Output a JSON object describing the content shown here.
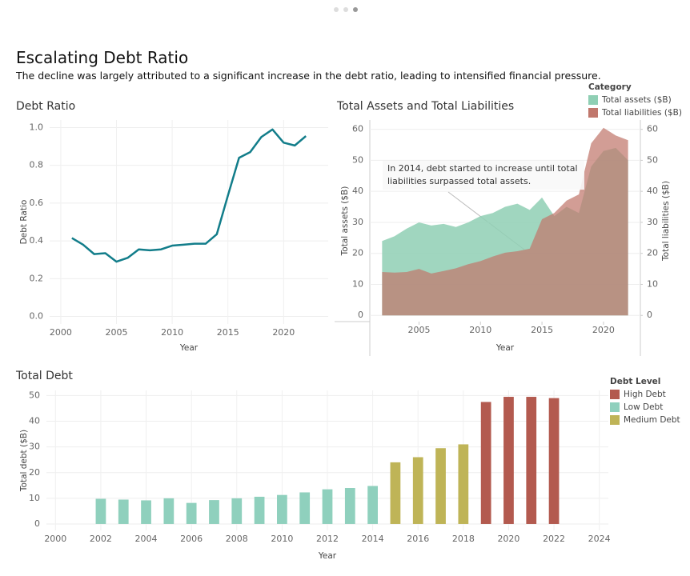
{
  "header": {
    "title": "Escalating Debt Ratio",
    "subtitle": "The decline was largely attributed to a significant increase in the debt ratio, leading to intensified financial pressure."
  },
  "chart_data": [
    {
      "type": "line",
      "title": "Debt Ratio",
      "x_label": "Year",
      "y_label": "Debt Ratio",
      "x": [
        2001,
        2002,
        2003,
        2004,
        2005,
        2006,
        2007,
        2008,
        2009,
        2010,
        2011,
        2012,
        2013,
        2014,
        2015,
        2016,
        2017,
        2018,
        2019,
        2020,
        2021,
        2022
      ],
      "values": [
        0.415,
        0.38,
        0.33,
        0.335,
        0.29,
        0.31,
        0.355,
        0.35,
        0.355,
        0.375,
        0.38,
        0.385,
        0.385,
        0.435,
        0.64,
        0.84,
        0.87,
        0.95,
        0.99,
        0.92,
        0.905,
        0.955
      ],
      "color": "#127d8a",
      "xlim": [
        1999,
        2024
      ],
      "xticks": [
        2000,
        2005,
        2010,
        2015,
        2020
      ],
      "ylim": [
        -0.04,
        1.04
      ],
      "yticks": [
        {
          "value": 0,
          "label": "0.0"
        },
        0.2,
        0.4,
        0.6,
        0.8,
        {
          "value": 1,
          "label": "1.0"
        }
      ],
      "grid": true,
      "xgrid": true
    },
    {
      "type": "area",
      "title": "Total Assets and Total Liabilities",
      "x_label": "Year",
      "y_label": "Total assets ($B)",
      "y2_label": "Total liabilities ($B)",
      "legend_title": "Category",
      "x": [
        2002,
        2003,
        2004,
        2005,
        2006,
        2007,
        2008,
        2009,
        2010,
        2011,
        2012,
        2013,
        2014,
        2015,
        2016,
        2017,
        2018,
        2019,
        2020,
        2021,
        2022
      ],
      "series": [
        {
          "name": "Total assets ($B)",
          "color": "#8fcfb4",
          "values": [
            24,
            25.5,
            28,
            30,
            29,
            29.5,
            28.5,
            30,
            32,
            33,
            35,
            36,
            34,
            38,
            32,
            35,
            33,
            48,
            53,
            54,
            50
          ]
        },
        {
          "name": "Total liabilities ($B)",
          "color": "#c0776c",
          "axis": "y2",
          "values": [
            14,
            13.8,
            14,
            15,
            13.5,
            14.3,
            15.2,
            16.5,
            17.5,
            19,
            20.2,
            20.7,
            21.5,
            31,
            33,
            37,
            39,
            55.5,
            60.5,
            58,
            56.5
          ]
        }
      ],
      "xlim": [
        2001,
        2023
      ],
      "xticks": [
        2005,
        2010,
        2015,
        2020
      ],
      "ylim": [
        -2,
        63
      ],
      "yticks": [
        0,
        10,
        20,
        30,
        40,
        50,
        60
      ],
      "y2lim": [
        -2,
        63
      ],
      "y2ticks": [
        0,
        10,
        20,
        30,
        40,
        50,
        60
      ],
      "grid": true,
      "xgrid": false,
      "annotation": "In 2014, debt started to increase until total liabilities surpassed total assets."
    },
    {
      "type": "bar",
      "title": "Total Debt",
      "x_label": "Year",
      "y_label": "Total debt ($B)",
      "legend_title": "Debt Level",
      "x": [
        2002,
        2003,
        2004,
        2005,
        2006,
        2007,
        2008,
        2009,
        2010,
        2011,
        2012,
        2013,
        2014,
        2015,
        2016,
        2017,
        2018,
        2019,
        2020,
        2021,
        2022
      ],
      "series": [
        {
          "name": "High Debt",
          "color": "#b35a4f",
          "values": [
            null,
            null,
            null,
            null,
            null,
            null,
            null,
            null,
            null,
            null,
            null,
            null,
            null,
            null,
            null,
            null,
            null,
            47.5,
            49.5,
            49.5,
            49
          ]
        },
        {
          "name": "Low Debt",
          "color": "#8fd0bd",
          "values": [
            9.8,
            9.5,
            9.2,
            10,
            8.2,
            9.3,
            10,
            10.6,
            11.3,
            12.3,
            13.5,
            14,
            14.8,
            null,
            null,
            null,
            null,
            null,
            null,
            null,
            null
          ]
        },
        {
          "name": "Medium Debt",
          "color": "#bfb457",
          "values": [
            null,
            null,
            null,
            null,
            null,
            null,
            null,
            null,
            null,
            null,
            null,
            null,
            null,
            24,
            26,
            29.5,
            31,
            null,
            null,
            null,
            null
          ]
        }
      ],
      "xlim": [
        1999.6,
        2024.4
      ],
      "xticks": [
        2000,
        2002,
        2004,
        2006,
        2008,
        2010,
        2012,
        2014,
        2016,
        2018,
        2020,
        2022,
        2024
      ],
      "ylim": [
        -2.5,
        52
      ],
      "yticks": [
        0,
        10,
        20,
        30,
        40,
        50
      ],
      "grid": true,
      "xgrid": true
    }
  ]
}
